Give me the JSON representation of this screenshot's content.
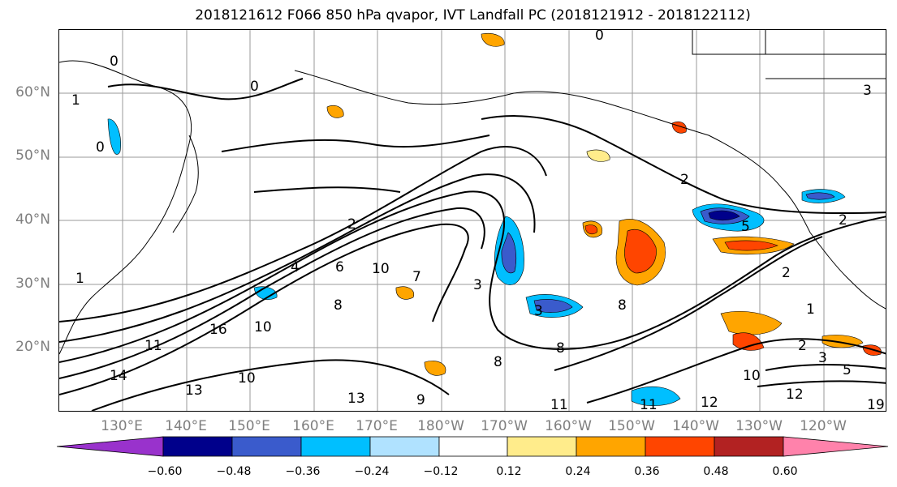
{
  "title": "2018121612 F066 850 hPa qvapor, IVT Landfall PC (2018121912 - 2018122112)",
  "lat_labels": [
    "60°N",
    "50°N",
    "40°N",
    "30°N",
    "20°N"
  ],
  "lon_labels": [
    "130°E",
    "140°E",
    "150°E",
    "160°E",
    "170°E",
    "180°W",
    "170°W",
    "160°W",
    "150°W",
    "140°W",
    "130°W",
    "120°W"
  ],
  "colorbar": {
    "colors": [
      "#9932CC",
      "#00008B",
      "#3A5BCC",
      "#00BFFF",
      "#B0E2FF",
      "#FFFFFF",
      "#FFEC8B",
      "#FFA500",
      "#FF4500",
      "#B22222",
      "#FF82AB"
    ],
    "tick_labels": [
      "−0.60",
      "−0.48",
      "−0.36",
      "−0.24",
      "−0.12",
      "0.12",
      "0.24",
      "0.36",
      "0.48",
      "0.60"
    ]
  },
  "contour_labels": [
    "0",
    "0",
    "0",
    "0",
    "1",
    "1",
    "1",
    "2",
    "2",
    "2",
    "2",
    "2",
    "3",
    "3",
    "3",
    "3",
    "4",
    "5",
    "5",
    "6",
    "7",
    "8",
    "8",
    "8",
    "8",
    "9",
    "10",
    "10",
    "10",
    "10",
    "11",
    "11",
    "11",
    "12",
    "12",
    "13",
    "13",
    "14",
    "16",
    "19"
  ]
}
